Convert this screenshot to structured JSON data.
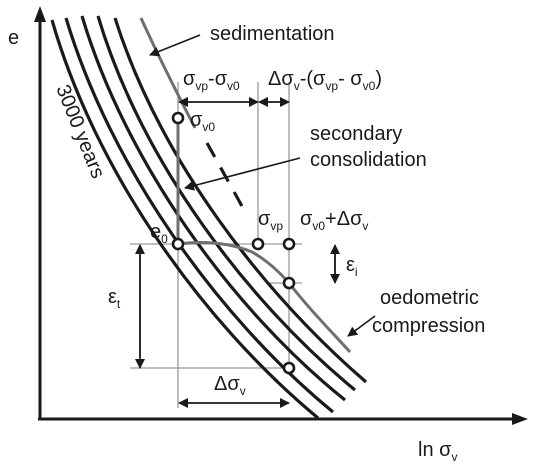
{
  "axes": {
    "y_label": "e",
    "x_label": "ln σ",
    "x_label_sub": "v"
  },
  "labels": {
    "sedimentation": "sedimentation",
    "years": "3000 years",
    "secondary_1": "secondary",
    "secondary_2": "consolidation",
    "oedometric_1": "oedometric",
    "oedometric_2": "compression"
  },
  "symbols": {
    "e0_main": "e",
    "e0_sub": "0",
    "sv0_main": "σ",
    "sv0_sub": "v0",
    "svp_main": "σ",
    "svp_sub": "vp",
    "sv0_plus_main": "σ",
    "sv0_plus_sub": "v0",
    "sv0_plus_rest": "+Δσ",
    "sv0_plus_sub2": "v",
    "ei_main": "ε",
    "ei_sub": "i",
    "et_main": "ε",
    "et_sub": "t",
    "dsv_main": "Δσ",
    "dsv_sub": "v"
  },
  "top_formula": {
    "p1_main": "σ",
    "p1_sub": "vp",
    "p1_dash": "-",
    "p1_main2": "σ",
    "p1_sub2": "v0",
    "p2_main": "Δσ",
    "p2_sub": "v",
    "p2_rest": "-(σ",
    "p2_sub2": "vp",
    "p2_mid": "- σ",
    "p2_sub3": "v0",
    "p2_end": ")"
  },
  "colors": {
    "ink": "#1a1a1a",
    "gray_curve": "#6f6f6f",
    "guide_line": "#9a9a9a"
  }
}
